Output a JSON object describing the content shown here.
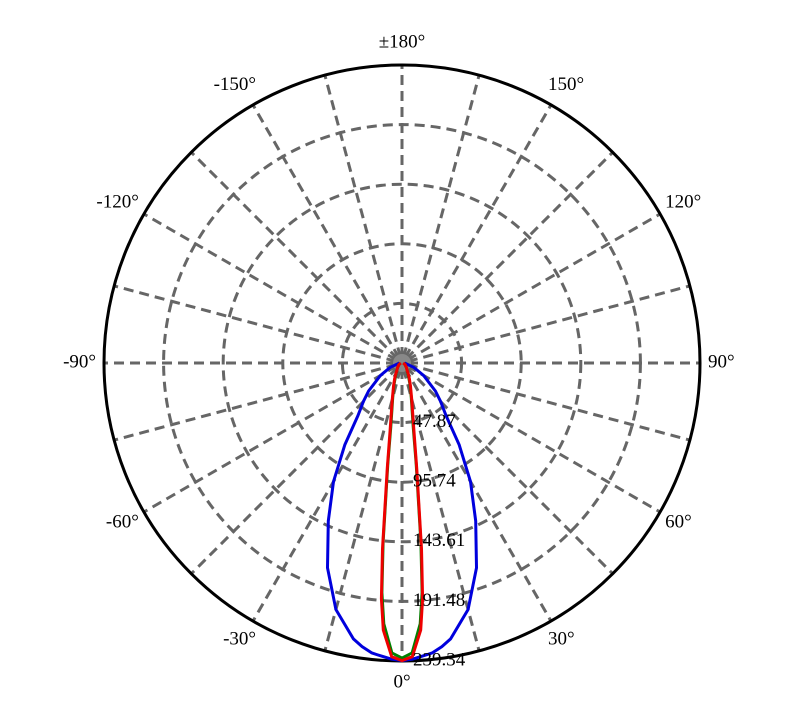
{
  "chart_data": {
    "type": "polar",
    "x": [
      -90,
      -70,
      -60,
      -50,
      -45,
      -40,
      -35,
      -30,
      -25,
      -20,
      -15,
      -10,
      -8,
      -6,
      -5,
      -4,
      -2,
      0,
      2,
      4,
      5,
      6,
      8,
      10,
      15,
      20,
      25,
      30,
      35,
      40,
      45,
      50,
      60,
      70,
      90
    ],
    "series": [
      {
        "color": "#0000dd",
        "values": [
          2,
          10,
          20,
          35,
          44,
          55,
          80,
          110,
          140,
          175,
          205,
          225,
          230,
          234,
          235,
          236,
          238,
          239,
          238,
          236,
          235,
          234,
          230,
          225,
          205,
          175,
          140,
          110,
          80,
          55,
          44,
          35,
          20,
          10,
          2
        ]
      },
      {
        "color": "#008000",
        "values": [
          1,
          2,
          3,
          4,
          5,
          6,
          7,
          9,
          13,
          19,
          29,
          52,
          82,
          145,
          185,
          210,
          233,
          237,
          233,
          210,
          185,
          145,
          82,
          52,
          29,
          19,
          13,
          9,
          7,
          6,
          5,
          4,
          3,
          2,
          1
        ]
      },
      {
        "color": "#ee0000",
        "values": [
          1,
          2,
          3,
          4,
          5,
          6,
          7,
          10,
          14,
          20,
          30,
          55,
          85,
          150,
          190,
          215,
          236,
          239,
          236,
          215,
          190,
          150,
          85,
          55,
          30,
          20,
          14,
          10,
          7,
          6,
          5,
          4,
          3,
          2,
          1
        ]
      }
    ],
    "ylim": [
      0,
      239.34
    ],
    "yticks": [
      47.87,
      95.74,
      143.61,
      191.48,
      239.34
    ],
    "xticks": [
      {
        "value": 0,
        "label": "0°"
      },
      {
        "value": 30,
        "label": "30°"
      },
      {
        "value": 60,
        "label": "60°"
      },
      {
        "value": 90,
        "label": "90°"
      },
      {
        "value": 120,
        "label": "120°"
      },
      {
        "value": 150,
        "label": "150°"
      },
      {
        "value": 180,
        "label": "±180°"
      },
      {
        "value": -150,
        "label": "-150°"
      },
      {
        "value": -120,
        "label": "-120°"
      },
      {
        "value": -90,
        "label": "-90°"
      },
      {
        "value": -60,
        "label": "-60°"
      },
      {
        "value": -30,
        "label": "-30°"
      }
    ],
    "minor_xticks": [
      15,
      45,
      75,
      105,
      135,
      165,
      -165,
      -135,
      -105,
      -75,
      -45,
      -15
    ],
    "grid": true
  }
}
